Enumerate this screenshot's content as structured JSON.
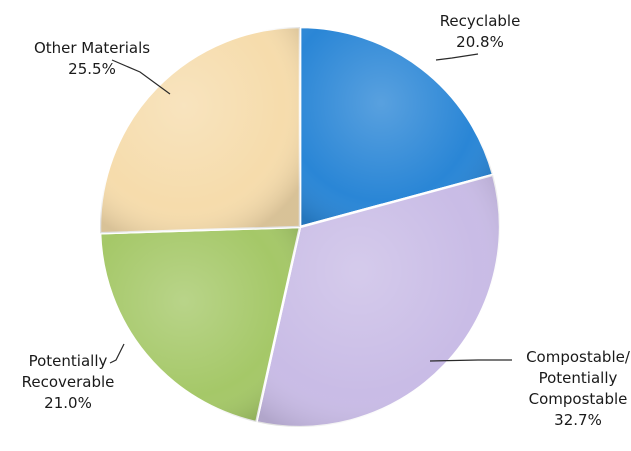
{
  "chart_data": {
    "type": "pie",
    "title": "",
    "slices": [
      {
        "name": "Recyclable",
        "label_lines": [
          "Recyclable"
        ],
        "value": 20.8,
        "value_label": "20.8%",
        "color": "#2a86d6"
      },
      {
        "name": "Compostable/ Potentially Compostable",
        "label_lines": [
          "Compostable/",
          "Potentially",
          "Compostable"
        ],
        "value": 32.7,
        "value_label": "32.7%",
        "color": "#c9bce6"
      },
      {
        "name": "Potentially Recoverable",
        "label_lines": [
          "Potentially",
          "Recoverable"
        ],
        "value": 21.0,
        "value_label": "21.0%",
        "color": "#a5c868"
      },
      {
        "name": "Other Materials",
        "label_lines": [
          "Other Materials"
        ],
        "value": 25.5,
        "value_label": "25.5%",
        "color": "#f6dcac"
      }
    ],
    "legend": "none",
    "start_angle": "top, clockwise"
  }
}
